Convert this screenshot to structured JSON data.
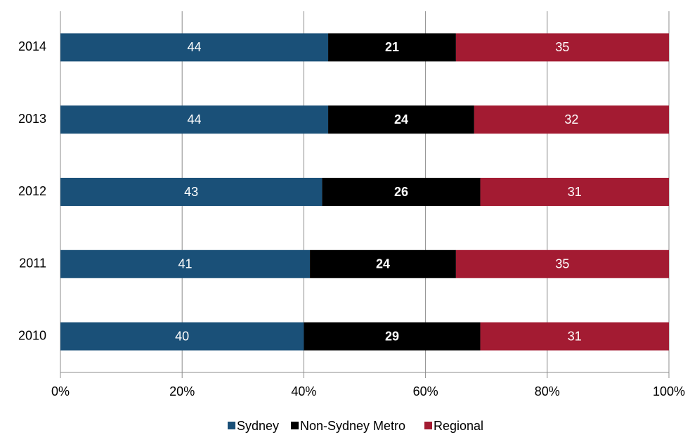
{
  "chart_data": {
    "type": "stacked-bar-horizontal",
    "categories": [
      "2014",
      "2013",
      "2012",
      "2011",
      "2010"
    ],
    "series": [
      {
        "name": "Sydney",
        "color": "#1a5078",
        "values": [
          44,
          44,
          43,
          41,
          40
        ]
      },
      {
        "name": "Non-Sydney Metro",
        "color": "#000000",
        "values": [
          21,
          24,
          26,
          24,
          29
        ]
      },
      {
        "name": "Regional",
        "color": "#a31b32",
        "values": [
          35,
          32,
          31,
          35,
          31
        ]
      }
    ],
    "xlim": [
      0,
      100
    ],
    "xticks": [
      {
        "value": 0,
        "label": "0%"
      },
      {
        "value": 20,
        "label": "20%"
      },
      {
        "value": 40,
        "label": "40%"
      },
      {
        "value": 60,
        "label": "60%"
      },
      {
        "value": 80,
        "label": "80%"
      },
      {
        "value": 100,
        "label": "100%"
      }
    ],
    "grid": true,
    "legend": "bottom"
  }
}
